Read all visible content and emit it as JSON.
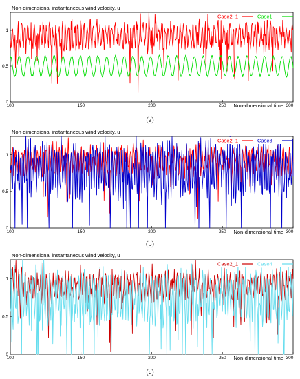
{
  "chart_data": [
    {
      "type": "line",
      "panel_label": "(a)",
      "ylabel": "Non-dimensional instantaneous wind velocity, u",
      "xlabel": "Non-dimensional time",
      "xlim": [
        100,
        300
      ],
      "ylim": [
        0,
        1.25
      ],
      "xticks": [
        "100",
        "150",
        "200",
        "250",
        "300"
      ],
      "yticks": [
        "0",
        "0.5",
        "1"
      ],
      "legend_position": "top-right",
      "series": [
        {
          "name": "Case2_1",
          "color": "#ff0000",
          "style": "spiky",
          "mean": 0.92,
          "amp": 0.17,
          "period": 2.2
        },
        {
          "name": "Case1",
          "color": "#00dd00",
          "style": "periodic",
          "mean": 0.5,
          "amp": 0.14,
          "period": 6.2
        }
      ]
    },
    {
      "type": "line",
      "panel_label": "(b)",
      "ylabel": "Non-dimensional instantaneous wind velocity, u",
      "xlabel": "Non-dimensional time",
      "xlim": [
        100,
        300
      ],
      "ylim": [
        0,
        1.25
      ],
      "xticks": [
        "100",
        "150",
        "200",
        "250",
        "300"
      ],
      "yticks": [
        "0",
        "0.5",
        "1"
      ],
      "legend_position": "top-right",
      "series": [
        {
          "name": "Case2_1",
          "color": "#ff0000",
          "style": "spiky",
          "mean": 0.92,
          "amp": 0.17,
          "period": 2.2
        },
        {
          "name": "Case3",
          "color": "#0000cc",
          "style": "spiky",
          "mean": 0.8,
          "amp": 0.32,
          "period": 1.7
        }
      ]
    },
    {
      "type": "line",
      "panel_label": "(c)",
      "ylabel": "Non-dimensional instantaneous wind velocity, u",
      "xlabel": "Non-dimensional time",
      "xlim": [
        100,
        300
      ],
      "ylim": [
        0,
        1.25
      ],
      "xticks": [
        "100",
        "150",
        "200",
        "250",
        "300"
      ],
      "yticks": [
        "0",
        "0.5",
        "1"
      ],
      "legend_position": "top-right",
      "series": [
        {
          "name": "Case2_1",
          "color": "#cc0000",
          "style": "spiky",
          "mean": 0.9,
          "amp": 0.17,
          "period": 2.2
        },
        {
          "name": "Case4",
          "color": "#66ddee",
          "style": "spiky",
          "mean": 0.75,
          "amp": 0.3,
          "period": 1.9
        }
      ]
    }
  ]
}
